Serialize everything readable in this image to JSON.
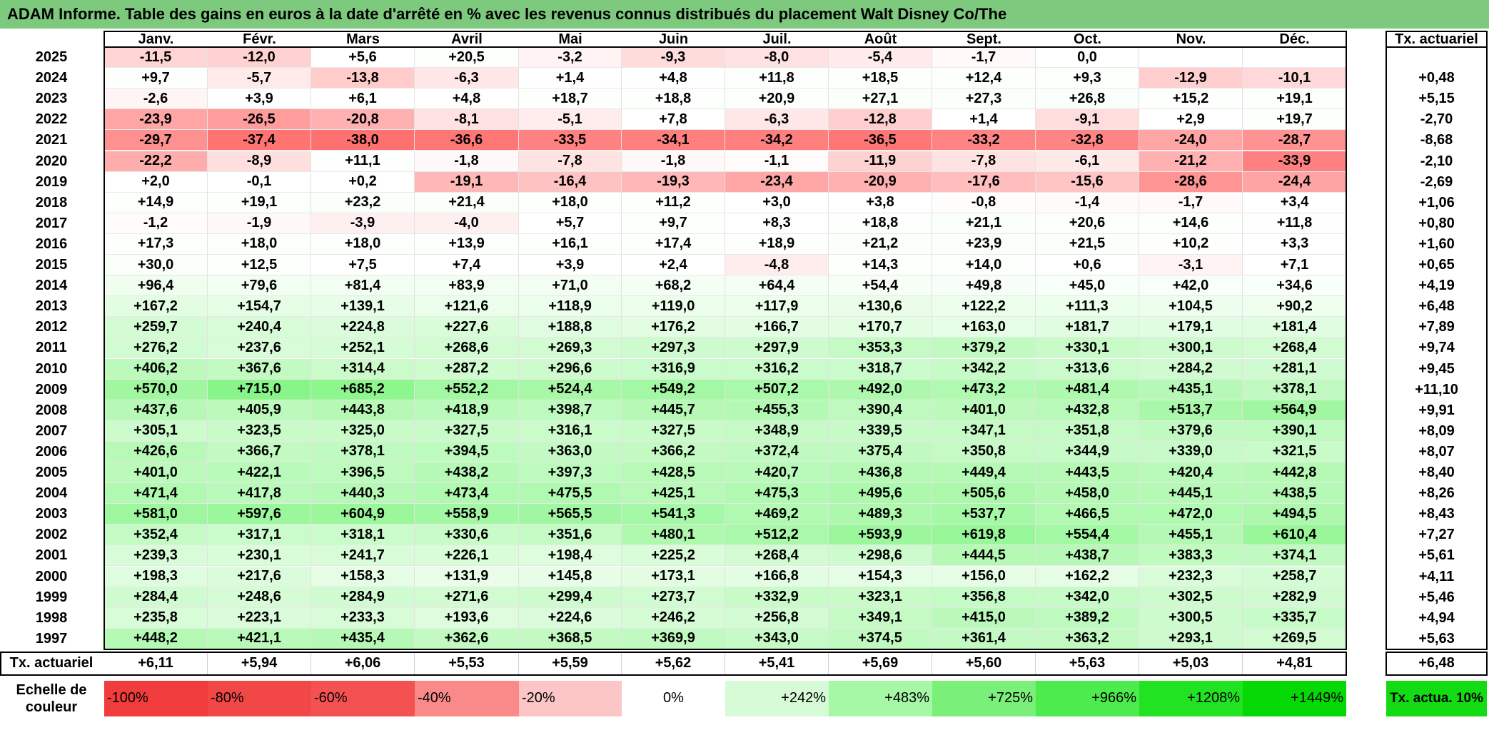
{
  "title": "ADAM Informe. Table des gains en euros à la date d'arrêté en % avec les revenus connus distribués du placement Walt Disney Co/The",
  "months": [
    "Janv.",
    "Févr.",
    "Mars",
    "Avril",
    "Mai",
    "Juin",
    "Juil.",
    "Août",
    "Sept.",
    "Oct.",
    "Nov.",
    "Déc."
  ],
  "rate_header": "Tx. actuariel",
  "rows": [
    {
      "year": "2025",
      "values": [
        "-11,5",
        "-12,0",
        "+5,6",
        "+20,5",
        "-3,2",
        "-9,3",
        "-8,0",
        "-5,4",
        "-1,7",
        "0,0",
        "",
        ""
      ],
      "rate": ""
    },
    {
      "year": "2024",
      "values": [
        "+9,7",
        "-5,7",
        "-13,8",
        "-6,3",
        "+1,4",
        "+4,8",
        "+11,8",
        "+18,5",
        "+12,4",
        "+9,3",
        "-12,9",
        "-10,1"
      ],
      "rate": "+0,48"
    },
    {
      "year": "2023",
      "values": [
        "-2,6",
        "+3,9",
        "+6,1",
        "+4,8",
        "+18,7",
        "+18,8",
        "+20,9",
        "+27,1",
        "+27,3",
        "+26,8",
        "+15,2",
        "+19,1"
      ],
      "rate": "+5,15"
    },
    {
      "year": "2022",
      "values": [
        "-23,9",
        "-26,5",
        "-20,8",
        "-8,1",
        "-5,1",
        "+7,8",
        "-6,3",
        "-12,8",
        "+1,4",
        "-9,1",
        "+2,9",
        "+19,7"
      ],
      "rate": "-2,70"
    },
    {
      "year": "2021",
      "values": [
        "-29,7",
        "-37,4",
        "-38,0",
        "-36,6",
        "-33,5",
        "-34,1",
        "-34,2",
        "-36,5",
        "-33,2",
        "-32,8",
        "-24,0",
        "-28,7"
      ],
      "rate": "-8,68"
    },
    {
      "year": "2020",
      "values": [
        "-22,2",
        "-8,9",
        "+11,1",
        "-1,8",
        "-7,8",
        "-1,8",
        "-1,1",
        "-11,9",
        "-7,8",
        "-6,1",
        "-21,2",
        "-33,9"
      ],
      "rate": "-2,10"
    },
    {
      "year": "2019",
      "values": [
        "+2,0",
        "-0,1",
        "+0,2",
        "-19,1",
        "-16,4",
        "-19,3",
        "-23,4",
        "-20,9",
        "-17,6",
        "-15,6",
        "-28,6",
        "-24,4"
      ],
      "rate": "-2,69"
    },
    {
      "year": "2018",
      "values": [
        "+14,9",
        "+19,1",
        "+23,2",
        "+21,4",
        "+18,0",
        "+11,2",
        "+3,0",
        "+3,8",
        "-0,8",
        "-1,4",
        "-1,7",
        "+3,4"
      ],
      "rate": "+1,06"
    },
    {
      "year": "2017",
      "values": [
        "-1,2",
        "-1,9",
        "-3,9",
        "-4,0",
        "+5,7",
        "+9,7",
        "+8,3",
        "+18,8",
        "+21,1",
        "+20,6",
        "+14,6",
        "+11,8"
      ],
      "rate": "+0,80"
    },
    {
      "year": "2016",
      "values": [
        "+17,3",
        "+18,0",
        "+18,0",
        "+13,9",
        "+16,1",
        "+17,4",
        "+18,9",
        "+21,2",
        "+23,9",
        "+21,5",
        "+10,2",
        "+3,3"
      ],
      "rate": "+1,60"
    },
    {
      "year": "2015",
      "values": [
        "+30,0",
        "+12,5",
        "+7,5",
        "+7,4",
        "+3,9",
        "+2,4",
        "-4,8",
        "+14,3",
        "+14,0",
        "+0,6",
        "-3,1",
        "+7,1"
      ],
      "rate": "+0,65"
    },
    {
      "year": "2014",
      "values": [
        "+96,4",
        "+79,6",
        "+81,4",
        "+83,9",
        "+71,0",
        "+68,2",
        "+64,4",
        "+54,4",
        "+49,8",
        "+45,0",
        "+42,0",
        "+34,6"
      ],
      "rate": "+4,19"
    },
    {
      "year": "2013",
      "values": [
        "+167,2",
        "+154,7",
        "+139,1",
        "+121,6",
        "+118,9",
        "+119,0",
        "+117,9",
        "+130,6",
        "+122,2",
        "+111,3",
        "+104,5",
        "+90,2"
      ],
      "rate": "+6,48"
    },
    {
      "year": "2012",
      "values": [
        "+259,7",
        "+240,4",
        "+224,8",
        "+227,6",
        "+188,8",
        "+176,2",
        "+166,7",
        "+170,7",
        "+163,0",
        "+181,7",
        "+179,1",
        "+181,4"
      ],
      "rate": "+7,89"
    },
    {
      "year": "2011",
      "values": [
        "+276,2",
        "+237,6",
        "+252,1",
        "+268,6",
        "+269,3",
        "+297,3",
        "+297,9",
        "+353,3",
        "+379,2",
        "+330,1",
        "+300,1",
        "+268,4"
      ],
      "rate": "+9,74"
    },
    {
      "year": "2010",
      "values": [
        "+406,2",
        "+367,6",
        "+314,4",
        "+287,2",
        "+296,6",
        "+316,9",
        "+316,2",
        "+318,7",
        "+342,2",
        "+313,6",
        "+284,2",
        "+281,1"
      ],
      "rate": "+9,45"
    },
    {
      "year": "2009",
      "values": [
        "+570,0",
        "+715,0",
        "+685,2",
        "+552,2",
        "+524,4",
        "+549,2",
        "+507,2",
        "+492,0",
        "+473,2",
        "+481,4",
        "+435,1",
        "+378,1"
      ],
      "rate": "+11,10"
    },
    {
      "year": "2008",
      "values": [
        "+437,6",
        "+405,9",
        "+443,8",
        "+418,9",
        "+398,7",
        "+445,7",
        "+455,3",
        "+390,4",
        "+401,0",
        "+432,8",
        "+513,7",
        "+564,9"
      ],
      "rate": "+9,91"
    },
    {
      "year": "2007",
      "values": [
        "+305,1",
        "+323,5",
        "+325,0",
        "+327,5",
        "+316,1",
        "+327,5",
        "+348,9",
        "+339,5",
        "+347,1",
        "+351,8",
        "+379,6",
        "+390,1"
      ],
      "rate": "+8,09"
    },
    {
      "year": "2006",
      "values": [
        "+426,6",
        "+366,7",
        "+378,1",
        "+394,5",
        "+363,0",
        "+366,2",
        "+372,4",
        "+375,4",
        "+350,8",
        "+344,9",
        "+339,0",
        "+321,5"
      ],
      "rate": "+8,07"
    },
    {
      "year": "2005",
      "values": [
        "+401,0",
        "+422,1",
        "+396,5",
        "+438,2",
        "+397,3",
        "+428,5",
        "+420,7",
        "+436,8",
        "+449,4",
        "+443,5",
        "+420,4",
        "+442,8"
      ],
      "rate": "+8,40"
    },
    {
      "year": "2004",
      "values": [
        "+471,4",
        "+417,8",
        "+440,3",
        "+473,4",
        "+475,5",
        "+425,1",
        "+475,3",
        "+495,6",
        "+505,6",
        "+458,0",
        "+445,1",
        "+438,5"
      ],
      "rate": "+8,26"
    },
    {
      "year": "2003",
      "values": [
        "+581,0",
        "+597,6",
        "+604,9",
        "+558,9",
        "+565,5",
        "+541,3",
        "+469,2",
        "+489,3",
        "+537,7",
        "+466,5",
        "+472,0",
        "+494,5"
      ],
      "rate": "+8,43"
    },
    {
      "year": "2002",
      "values": [
        "+352,4",
        "+317,1",
        "+318,1",
        "+330,6",
        "+351,6",
        "+480,1",
        "+512,2",
        "+593,9",
        "+619,8",
        "+554,4",
        "+455,1",
        "+610,4"
      ],
      "rate": "+7,27"
    },
    {
      "year": "2001",
      "values": [
        "+239,3",
        "+230,1",
        "+241,7",
        "+226,1",
        "+198,4",
        "+225,2",
        "+268,4",
        "+298,6",
        "+444,5",
        "+438,7",
        "+383,3",
        "+374,1"
      ],
      "rate": "+5,61"
    },
    {
      "year": "2000",
      "values": [
        "+198,3",
        "+217,6",
        "+158,3",
        "+131,9",
        "+145,8",
        "+173,1",
        "+166,8",
        "+154,3",
        "+156,0",
        "+162,2",
        "+232,3",
        "+258,7"
      ],
      "rate": "+4,11"
    },
    {
      "year": "1999",
      "values": [
        "+284,4",
        "+248,6",
        "+284,9",
        "+271,6",
        "+299,4",
        "+273,7",
        "+332,9",
        "+323,1",
        "+356,8",
        "+342,0",
        "+302,5",
        "+282,9"
      ],
      "rate": "+5,46"
    },
    {
      "year": "1998",
      "values": [
        "+235,8",
        "+223,1",
        "+233,3",
        "+193,6",
        "+224,6",
        "+246,2",
        "+256,8",
        "+349,1",
        "+415,0",
        "+389,2",
        "+300,5",
        "+335,7"
      ],
      "rate": "+4,94"
    },
    {
      "year": "1997",
      "values": [
        "+448,2",
        "+421,1",
        "+435,4",
        "+362,6",
        "+368,5",
        "+369,9",
        "+343,0",
        "+374,5",
        "+361,4",
        "+363,2",
        "+293,1",
        "+269,5"
      ],
      "rate": "+5,63"
    }
  ],
  "footer": {
    "label": "Tx. actuariel",
    "values": [
      "+6,11",
      "+5,94",
      "+6,06",
      "+5,53",
      "+5,59",
      "+5,62",
      "+5,41",
      "+5,69",
      "+5,60",
      "+5,63",
      "+5,03",
      "+4,81"
    ],
    "rate": "+6,48"
  },
  "legend": {
    "label": "Echelle de couleur",
    "items": [
      {
        "text": "-100%",
        "color": "#f03c3c",
        "align": "left"
      },
      {
        "text": "-80%",
        "color": "#f24747",
        "align": "left"
      },
      {
        "text": "-60%",
        "color": "#f45252",
        "align": "left"
      },
      {
        "text": "-40%",
        "color": "#fa8a8a",
        "align": "left"
      },
      {
        "text": "-20%",
        "color": "#fdc6c6",
        "align": "left"
      },
      {
        "text": "0%",
        "color": "#ffffff",
        "align": "center"
      },
      {
        "text": "+242%",
        "color": "#d6fbd6",
        "align": "right"
      },
      {
        "text": "+483%",
        "color": "#a6f7a6",
        "align": "right"
      },
      {
        "text": "+725%",
        "color": "#7af07a",
        "align": "right"
      },
      {
        "text": "+966%",
        "color": "#4deb4d",
        "align": "right"
      },
      {
        "text": "+1208%",
        "color": "#22e322",
        "align": "right"
      },
      {
        "text": "+1449%",
        "color": "#05d905",
        "align": "right"
      }
    ],
    "rate_text": "Tx. actua. 10%",
    "rate_color": "#14dc14"
  }
}
